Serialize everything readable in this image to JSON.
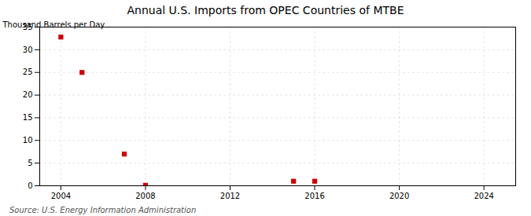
{
  "chart_data": {
    "type": "scatter",
    "title": "Annual U.S. Imports from OPEC Countries of MTBE",
    "ylabel": "Thousand Barrels per Day",
    "source": "Source: U.S. Energy Information Administration",
    "x": [
      2004,
      2005,
      2007,
      2008,
      2015,
      2016
    ],
    "values": [
      32.8,
      25.0,
      7.0,
      0.1,
      1.0,
      1.0
    ],
    "color": "#cc0000",
    "marker": "square",
    "xlim": [
      2003.0,
      2025.5
    ],
    "ylim": [
      0,
      35
    ],
    "xticks": [
      2004,
      2008,
      2012,
      2016,
      2020,
      2024
    ],
    "yticks": [
      0,
      5,
      10,
      15,
      20,
      25,
      30,
      35
    ],
    "grid": true
  }
}
